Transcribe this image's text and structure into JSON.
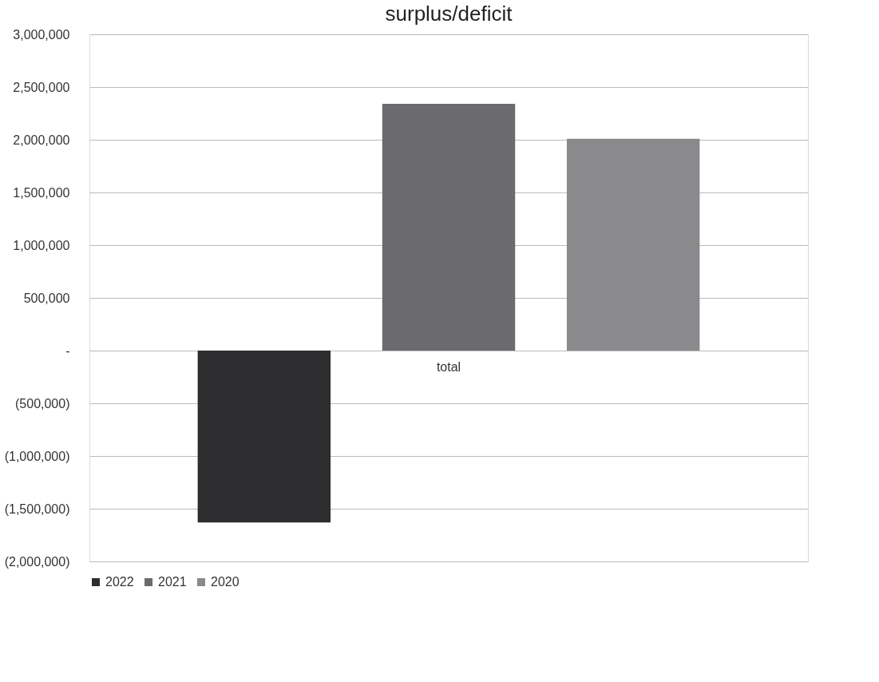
{
  "chart_data": {
    "type": "bar",
    "title": "surplus/deficit",
    "categories": [
      "total"
    ],
    "series": [
      {
        "name": "2022",
        "color": "#2e2e30",
        "values": [
          -1630000
        ]
      },
      {
        "name": "2021",
        "color": "#6b6b6d",
        "values": [
          2340000
        ]
      },
      {
        "name": "2020",
        "color": "#8a8a8c",
        "values": [
          2010000
        ]
      }
    ],
    "ylim": [
      -2000000,
      3000000
    ],
    "yticks": [
      {
        "value": 3000000,
        "label": "3,000,000"
      },
      {
        "value": 2500000,
        "label": "2,500,000"
      },
      {
        "value": 2000000,
        "label": "2,000,000"
      },
      {
        "value": 1500000,
        "label": "1,500,000"
      },
      {
        "value": 1000000,
        "label": "1,000,000"
      },
      {
        "value": 500000,
        "label": "500,000"
      },
      {
        "value": 0,
        "label": "-"
      },
      {
        "value": -500000,
        "label": "(500,000)"
      },
      {
        "value": -1000000,
        "label": "(1,000,000)"
      },
      {
        "value": -1500000,
        "label": "(1,500,000)"
      },
      {
        "value": -2000000,
        "label": "(2,000,000)"
      }
    ],
    "grid": "y",
    "legend": "bottom"
  }
}
